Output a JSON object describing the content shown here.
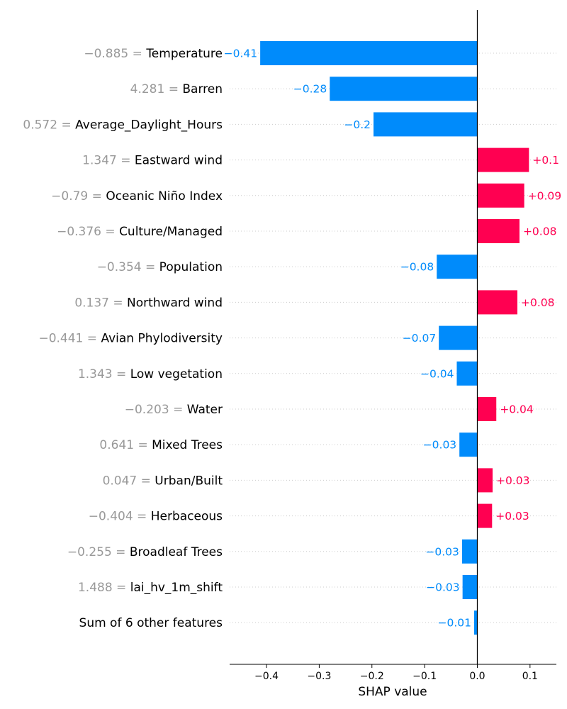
{
  "chart_data": {
    "type": "bar",
    "orientation": "horizontal",
    "xlabel": "SHAP value",
    "xlim": [
      -0.47,
      0.15
    ],
    "xticks": [
      -0.4,
      -0.3,
      -0.2,
      -0.1,
      0.0,
      0.1
    ],
    "xtick_labels": [
      "−0.4",
      "−0.3",
      "−0.2",
      "−0.1",
      "0.0",
      "0.1"
    ],
    "grid": "horizontal dotted",
    "colors": {
      "positive": "#ff0051",
      "negative": "#008bfb",
      "value_text": "#999999"
    },
    "features": [
      {
        "value": "−0.885",
        "name": "Temperature",
        "shap": -0.412,
        "label": "−0.41"
      },
      {
        "value": "4.281",
        "name": "Barren",
        "shap": -0.28,
        "label": "−0.28"
      },
      {
        "value": "0.572",
        "name": "Average_Daylight_Hours",
        "shap": -0.197,
        "label": "−0.2"
      },
      {
        "value": "1.347",
        "name": "Eastward wind",
        "shap": 0.098,
        "label": "+0.1"
      },
      {
        "value": "−0.79",
        "name": "Oceanic Niño Index",
        "shap": 0.089,
        "label": "+0.09"
      },
      {
        "value": "−0.376",
        "name": "Culture/Managed",
        "shap": 0.08,
        "label": "+0.08"
      },
      {
        "value": "−0.354",
        "name": "Population",
        "shap": -0.077,
        "label": "−0.08"
      },
      {
        "value": "0.137",
        "name": "Northward wind",
        "shap": 0.076,
        "label": "+0.08"
      },
      {
        "value": "−0.441",
        "name": "Avian Phylodiversity",
        "shap": -0.073,
        "label": "−0.07"
      },
      {
        "value": "1.343",
        "name": "Low vegetation",
        "shap": -0.039,
        "label": "−0.04"
      },
      {
        "value": "−0.203",
        "name": "Water",
        "shap": 0.036,
        "label": "+0.04"
      },
      {
        "value": "0.641",
        "name": "Mixed Trees",
        "shap": -0.034,
        "label": "−0.03"
      },
      {
        "value": "0.047",
        "name": "Urban/Built",
        "shap": 0.029,
        "label": "+0.03"
      },
      {
        "value": "−0.404",
        "name": "Herbaceous",
        "shap": 0.028,
        "label": "+0.03"
      },
      {
        "value": "−0.255",
        "name": "Broadleaf Trees",
        "shap": -0.029,
        "label": "−0.03"
      },
      {
        "value": "1.488",
        "name": "lai_hv_1m_shift",
        "shap": -0.028,
        "label": "−0.03"
      },
      {
        "value": "",
        "name": "Sum of 6 other features",
        "shap": -0.006,
        "label": "−0.01"
      }
    ]
  }
}
